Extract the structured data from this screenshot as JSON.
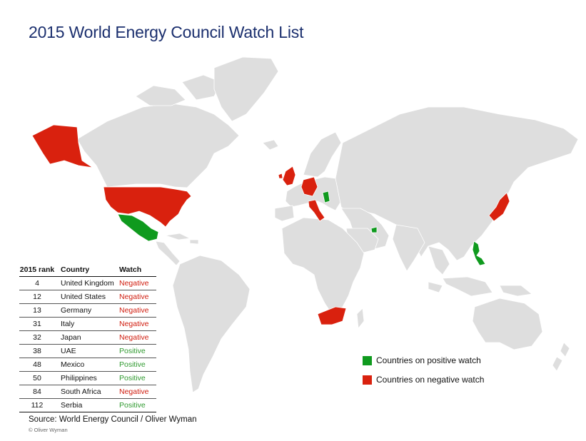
{
  "title": "2015 World Energy Council Watch List",
  "colors": {
    "positive": "#0f9a1e",
    "negative": "#d9210e",
    "neutral": "#dedede",
    "title": "#1b2f6e"
  },
  "table": {
    "headers": [
      "2015 rank",
      "Country",
      "Watch"
    ],
    "rows": [
      {
        "rank": "4",
        "country": "United Kingdom",
        "watch": "Negative",
        "status": "neg"
      },
      {
        "rank": "12",
        "country": "United States",
        "watch": "Negative",
        "status": "neg"
      },
      {
        "rank": "13",
        "country": "Germany",
        "watch": "Negative",
        "status": "neg"
      },
      {
        "rank": "31",
        "country": "Italy",
        "watch": "Negative",
        "status": "neg"
      },
      {
        "rank": "32",
        "country": "Japan",
        "watch": "Negative",
        "status": "neg"
      },
      {
        "rank": "38",
        "country": "UAE",
        "watch": "Positive",
        "status": "pos"
      },
      {
        "rank": "48",
        "country": "Mexico",
        "watch": "Positive",
        "status": "pos"
      },
      {
        "rank": "50",
        "country": "Philippines",
        "watch": "Positive",
        "status": "pos"
      },
      {
        "rank": "84",
        "country": "South Africa",
        "watch": "Negative",
        "status": "neg"
      },
      {
        "rank": "112",
        "country": "Serbia",
        "watch": "Positive",
        "status": "pos"
      }
    ]
  },
  "legend": {
    "positive": "Countries on positive watch",
    "negative": "Countries on negative watch"
  },
  "source": "Source: World Energy Council / Oliver Wyman",
  "copyright": "© Oliver Wyman"
}
